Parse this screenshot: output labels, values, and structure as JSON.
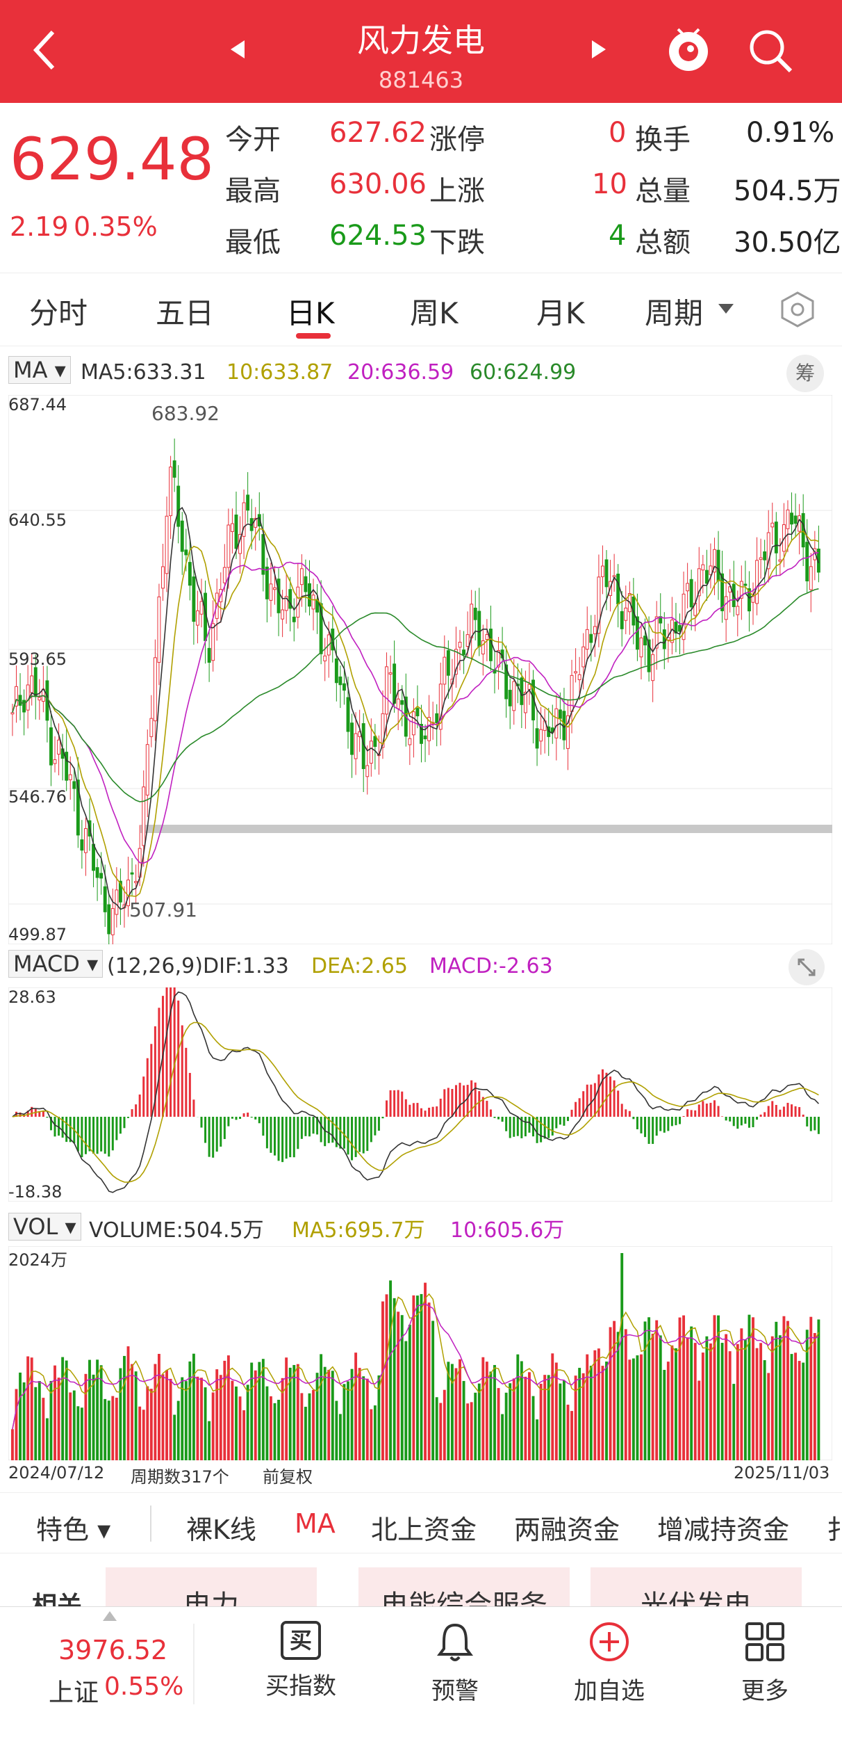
{
  "header": {
    "title": "风力发电",
    "code": "881463"
  },
  "quote": {
    "price": "629.48",
    "change": "2.19",
    "change_pct": "0.35%",
    "open_label": "今开",
    "open": "627.62",
    "high_label": "最高",
    "high": "630.06",
    "low_label": "最低",
    "low": "624.53",
    "limitup_label": "涨停",
    "limitup": "0",
    "up_label": "上涨",
    "up": "10",
    "down_label": "下跌",
    "down": "4",
    "turnover_label": "换手",
    "turnover": "0.91%",
    "volume_label": "总量",
    "volume": "504.5万",
    "amount_label": "总额",
    "amount": "30.50亿"
  },
  "tabs": [
    "分时",
    "五日",
    "日K",
    "周K",
    "月K",
    "周期"
  ],
  "active_tab": "日K",
  "ma_legend": {
    "selector": "MA",
    "ma5": "MA5:633.31",
    "ma10": "10:633.87",
    "ma20": "20:636.59",
    "ma60": "60:624.99",
    "chip": "筹"
  },
  "macd_legend": {
    "selector": "MACD",
    "params": "(12,26,9)",
    "dif": "DIF:1.33",
    "dea": "DEA:2.65",
    "macd": "MACD:-2.63"
  },
  "vol_legend": {
    "selector": "VOL",
    "volume": "VOLUME:504.5万",
    "ma5": "MA5:695.7万",
    "ma10": "10:605.6万"
  },
  "chart_data": {
    "type": "candlestick",
    "y_ticks": [
      "687.44",
      "640.55",
      "593.65",
      "546.76",
      "499.87"
    ],
    "ylim": [
      499.87,
      687.44
    ],
    "max_label": "683.92",
    "min_label": "507.91",
    "macd_ticks": [
      "28.63",
      "-18.38"
    ],
    "vol_tick": "2024万",
    "x_start": "2024/07/12",
    "x_end": "2025/11/03",
    "period_count": "周期数317个",
    "adjust": "前复权",
    "close_series": [
      575,
      590,
      585,
      570,
      560,
      545,
      530,
      515,
      510,
      520,
      540,
      600,
      660,
      640,
      615,
      600,
      625,
      640,
      650,
      635,
      620,
      610,
      625,
      615,
      605,
      590,
      575,
      560,
      570,
      590,
      580,
      570,
      575,
      585,
      600,
      605,
      610,
      595,
      590,
      585,
      580,
      570,
      575,
      585,
      600,
      620,
      625,
      615,
      605,
      600,
      605,
      610,
      615,
      630,
      625,
      620,
      615,
      625,
      635,
      640,
      645,
      635,
      625
    ],
    "colors": {
      "up": "#e8303a",
      "down": "#1a9a1a",
      "ma5": "#333333",
      "ma10": "#b0a000",
      "ma20": "#c020c0",
      "ma60": "#2a8a2a"
    }
  },
  "strip": {
    "items": [
      "特色",
      "裸K线",
      "MA",
      "北上资金",
      "两融资金",
      "增减持资金",
      "扌"
    ]
  },
  "related": {
    "label": "相关",
    "tags": [
      "电力",
      "电能综合服务",
      "光伏发电"
    ]
  },
  "bottom": {
    "index_value": "3976.52",
    "index_name": "上证",
    "index_pct": "0.55%",
    "buy": "买指数",
    "buy_icon": "买",
    "alert": "预警",
    "add": "加自选",
    "more": "更多"
  }
}
